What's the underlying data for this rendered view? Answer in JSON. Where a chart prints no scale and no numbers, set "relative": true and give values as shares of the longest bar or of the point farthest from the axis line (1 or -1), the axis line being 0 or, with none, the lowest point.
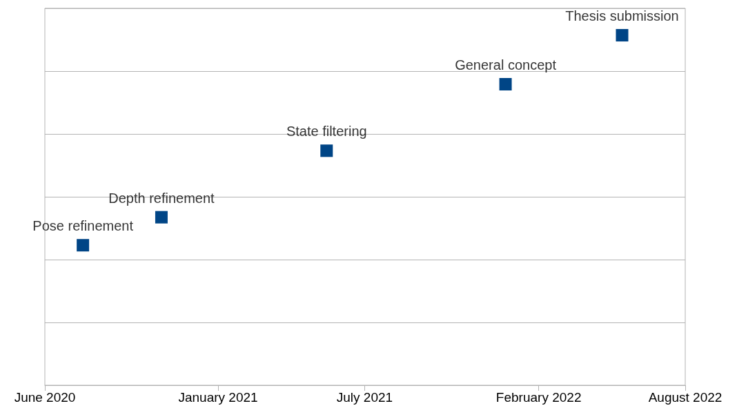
{
  "chart_data": {
    "type": "scatter",
    "relative": true,
    "marker": "square",
    "grid": "y",
    "x": [
      "2020-07-18",
      "2020-10-23",
      "2021-05-15",
      "2021-12-22",
      "2022-05-15"
    ],
    "series": [
      {
        "color": "#004586",
        "values": [
          0.4,
          0.48,
          0.67,
          0.86,
          1
        ]
      }
    ],
    "xlim": [
      "2020-06-01",
      "2022-08-01"
    ],
    "xticks": [
      {
        "value": "2020-06-01",
        "label": "June 2020"
      },
      {
        "value": "2021-01-01",
        "label": "January 2021"
      },
      {
        "value": "2021-07-01",
        "label": "July 2021"
      },
      {
        "value": "2022-02-01",
        "label": "February 2022"
      },
      {
        "value": "2022-08-01",
        "label": "August 2022"
      }
    ],
    "annotations": [
      {
        "text": "Pose refinement",
        "x": "2020-07-18",
        "y": 0.4
      },
      {
        "text": "Depth refinement",
        "x": "2020-10-23",
        "y": 0.48
      },
      {
        "text": "State filtering",
        "x": "2021-05-15",
        "y": 0.67
      },
      {
        "text": "General concept",
        "x": "2021-12-22",
        "y": 0.86
      },
      {
        "text": "Thesis submission",
        "x": "2022-05-15",
        "y": 1
      }
    ]
  }
}
